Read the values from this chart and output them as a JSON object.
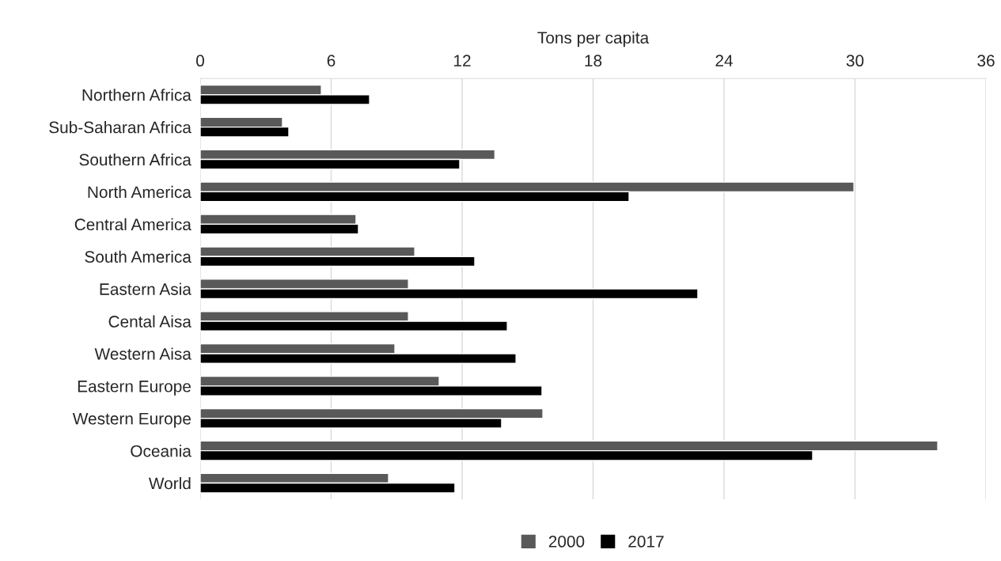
{
  "chart_data": {
    "type": "bar",
    "orientation": "horizontal",
    "xlabel": "Tons per capita",
    "categories": [
      "Northern Africa",
      "Sub-Saharan Africa",
      "Southern Africa",
      "North America",
      "Central America",
      "South America",
      "Eastern Asia",
      "Cental Aisa",
      "Western Aisa",
      "Eastern Europe",
      "Western Europe",
      "Oceania",
      "World"
    ],
    "series": [
      {
        "name": "2000",
        "color": "#595959",
        "values": [
          5.55,
          3.77,
          13.5,
          29.95,
          7.14,
          9.83,
          9.54,
          9.54,
          8.92,
          10.95,
          15.7,
          33.79,
          8.63
        ]
      },
      {
        "name": "2017",
        "color": "#000000",
        "values": [
          7.76,
          4.06,
          11.89,
          19.65,
          7.25,
          12.58,
          22.8,
          14.07,
          14.47,
          15.66,
          13.81,
          28.06,
          11.67
        ]
      }
    ],
    "xlim": [
      0,
      36
    ],
    "xticks": [
      0,
      6,
      12,
      18,
      24,
      30,
      36
    ],
    "grid": "x",
    "legend": "bottom"
  }
}
